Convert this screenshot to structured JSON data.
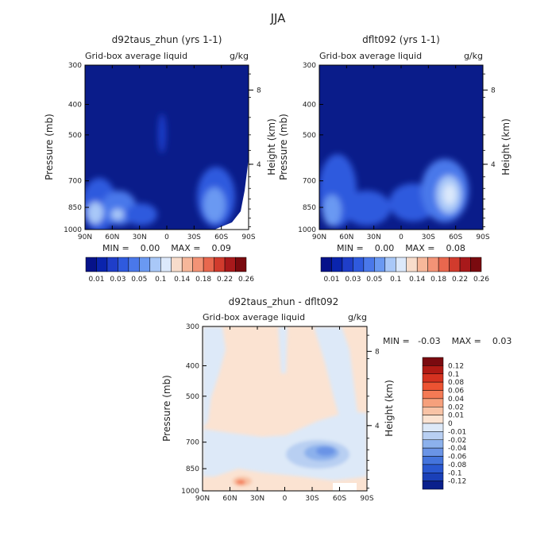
{
  "figure": {
    "title": "JJA"
  },
  "colors": {
    "base_field": "#0a1c8a",
    "outline": "#000000",
    "seq_scale": [
      "#06128a",
      "#0a24ad",
      "#1f3ec9",
      "#2f5ade",
      "#4a78ea",
      "#6a99f2",
      "#a9c8f8",
      "#dce9fb",
      "#f7dccb",
      "#f6b79a",
      "#f39376",
      "#e8674e",
      "#d13b2d",
      "#a8191b",
      "#7a0a0f"
    ],
    "div_scale": [
      "#7a0a0f",
      "#b01a14",
      "#d53220",
      "#ec5332",
      "#f47a55",
      "#f6a07c",
      "#f8c3a6",
      "#fbe3d2",
      "#dde9f8",
      "#b8cff2",
      "#8cb1ec",
      "#6a94e6",
      "#4474dc",
      "#2a58d0",
      "#1a40b8",
      "#0a208c"
    ]
  },
  "panels": [
    {
      "title": "d92taus_zhun (yrs 1-1)",
      "subtitle_left": "Grid-box average liquid",
      "subtitle_right": "g/kg",
      "ylabel": "Pressure (mb)",
      "y2label": "Height (km)",
      "stats": "MIN =    0.00    MAX =    0.09"
    },
    {
      "title": "dflt092 (yrs 1-1)",
      "subtitle_left": "Grid-box average liquid",
      "subtitle_right": "g/kg",
      "ylabel": "Pressure (mb)",
      "y2label": "Height (km)",
      "stats": "MIN =    0.00    MAX =    0.08"
    },
    {
      "title": "d92taus_zhun - dflt092",
      "subtitle_left": "Grid-box average liquid",
      "subtitle_right": "g/kg",
      "ylabel": "Pressure (mb)",
      "y2label": "Height (km)",
      "stats": "MIN =   -0.03    MAX =    0.03"
    }
  ],
  "chart_data": [
    {
      "type": "heatmap",
      "title": "d92taus_zhun (yrs 1-1)",
      "xlabel": "",
      "ylabel": "Pressure (mb)",
      "y2label": "Height (km)",
      "x_ticks": [
        "90N",
        "60N",
        "30N",
        "0",
        "30S",
        "60S",
        "90S"
      ],
      "x_tick_values": [
        90,
        60,
        30,
        0,
        -30,
        -60,
        -90
      ],
      "xlim": [
        90,
        -90
      ],
      "y_ticks": [
        300,
        400,
        500,
        700,
        850,
        1000
      ],
      "ylim": [
        1000,
        300
      ],
      "y_scale": "log",
      "y2_ticks": [
        {
          "label": "8",
          "pressure": 360
        },
        {
          "label": "4",
          "pressure": 620
        }
      ],
      "stats": {
        "min": 0.0,
        "max": 0.09
      },
      "features": [
        {
          "lat": 70,
          "p": 950,
          "value": 0.03
        },
        {
          "lat": 58,
          "p": 900,
          "value": 0.02
        },
        {
          "lat": 45,
          "p": 940,
          "value": 0.02
        },
        {
          "lat": 5,
          "p": 550,
          "value": 0.01
        },
        {
          "lat": -55,
          "p": 850,
          "value": 0.03
        },
        {
          "lat": -65,
          "p": 760,
          "value": 0.02
        }
      ]
    },
    {
      "type": "heatmap",
      "title": "dflt092 (yrs 1-1)",
      "xlabel": "",
      "ylabel": "Pressure (mb)",
      "y2label": "Height (km)",
      "x_ticks": [
        "90N",
        "60N",
        "30N",
        "0",
        "30S",
        "60S",
        "90S"
      ],
      "x_tick_values": [
        90,
        60,
        30,
        0,
        -30,
        -60,
        -90
      ],
      "xlim": [
        90,
        -90
      ],
      "y_ticks": [
        300,
        400,
        500,
        700,
        850,
        1000
      ],
      "ylim": [
        1000,
        300
      ],
      "y_scale": "log",
      "y2_ticks": [
        {
          "label": "8",
          "pressure": 360
        },
        {
          "label": "4",
          "pressure": 620
        }
      ],
      "stats": {
        "min": 0.0,
        "max": 0.08
      },
      "features": [
        {
          "lat": 70,
          "p": 950,
          "value": 0.03
        },
        {
          "lat": 60,
          "p": 800,
          "value": 0.02
        },
        {
          "lat": -35,
          "p": 820,
          "value": 0.02
        },
        {
          "lat": -55,
          "p": 840,
          "value": 0.05
        },
        {
          "lat": -65,
          "p": 760,
          "value": 0.03
        }
      ]
    },
    {
      "type": "heatmap",
      "title": "d92taus_zhun - dflt092",
      "xlabel": "",
      "ylabel": "Pressure (mb)",
      "y2label": "Height (km)",
      "x_ticks": [
        "90N",
        "60N",
        "30N",
        "0",
        "30S",
        "60S",
        "90S"
      ],
      "x_tick_values": [
        90,
        60,
        30,
        0,
        -30,
        -60,
        -90
      ],
      "xlim": [
        90,
        -90
      ],
      "y_ticks": [
        300,
        400,
        500,
        700,
        850,
        1000
      ],
      "ylim": [
        1000,
        300
      ],
      "y_scale": "log",
      "y2_ticks": [
        {
          "label": "8",
          "pressure": 360
        },
        {
          "label": "4",
          "pressure": 620
        }
      ],
      "stats": {
        "min": -0.03,
        "max": 0.03
      },
      "features": [
        {
          "lat": 45,
          "p": 980,
          "value": 0.02
        },
        {
          "lat": -40,
          "p": 820,
          "value": -0.03
        },
        {
          "lat": 70,
          "p": 800,
          "value": -0.01
        },
        {
          "lat": 0,
          "p": 500,
          "value": 0.01
        }
      ]
    }
  ],
  "colorbars": [
    {
      "orientation": "horizontal",
      "labels": [
        "0.01",
        "0.03",
        "0.05",
        "0.1",
        "0.14",
        "0.18",
        "0.22",
        "0.26"
      ]
    },
    {
      "orientation": "horizontal",
      "labels": [
        "0.01",
        "0.03",
        "0.05",
        "0.1",
        "0.14",
        "0.18",
        "0.22",
        "0.26"
      ]
    },
    {
      "orientation": "vertical",
      "labels": [
        "0.12",
        "0.1",
        "0.08",
        "0.06",
        "0.04",
        "0.02",
        "0.01",
        "0",
        "-0.01",
        "-0.02",
        "-0.04",
        "-0.06",
        "-0.08",
        "-0.1",
        "-0.12"
      ]
    }
  ]
}
